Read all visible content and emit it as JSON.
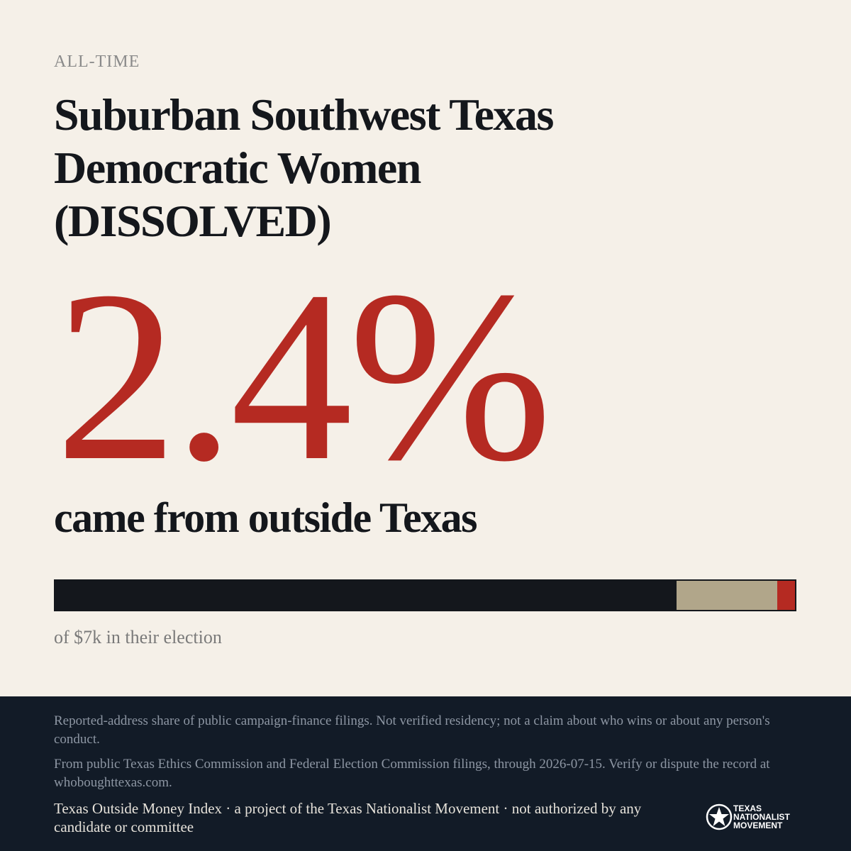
{
  "eyebrow": "ALL-TIME",
  "title": [
    "Suburban Southwest Texas",
    "Democratic Women",
    "(DISSOLVED)"
  ],
  "headline": "2.4%",
  "subhead": "came from outside Texas",
  "bar": {
    "segments": [
      {
        "value": 84,
        "color": "#14171c"
      },
      {
        "value": 13.6,
        "color": "#b1a68a"
      },
      {
        "value": 2.4,
        "color": "#b52a22"
      }
    ]
  },
  "caption": "of $7k in their election",
  "footer": {
    "disclaimer": "Reported-address share of public campaign-finance filings. Not verified residency; not a claim about who wins or about any person's conduct.",
    "source": "From public Texas Ethics Commission and Federal Election Commission filings, through 2026-07-15. Verify or dispute the record at whoboughttexas.com.",
    "credit": "Texas Outside Money Index · a project of the Texas Nationalist Movement · not authorized by any candidate or committee",
    "logo": [
      "TEXAS",
      "NATIONALIST",
      "MOVEMENT"
    ]
  }
}
